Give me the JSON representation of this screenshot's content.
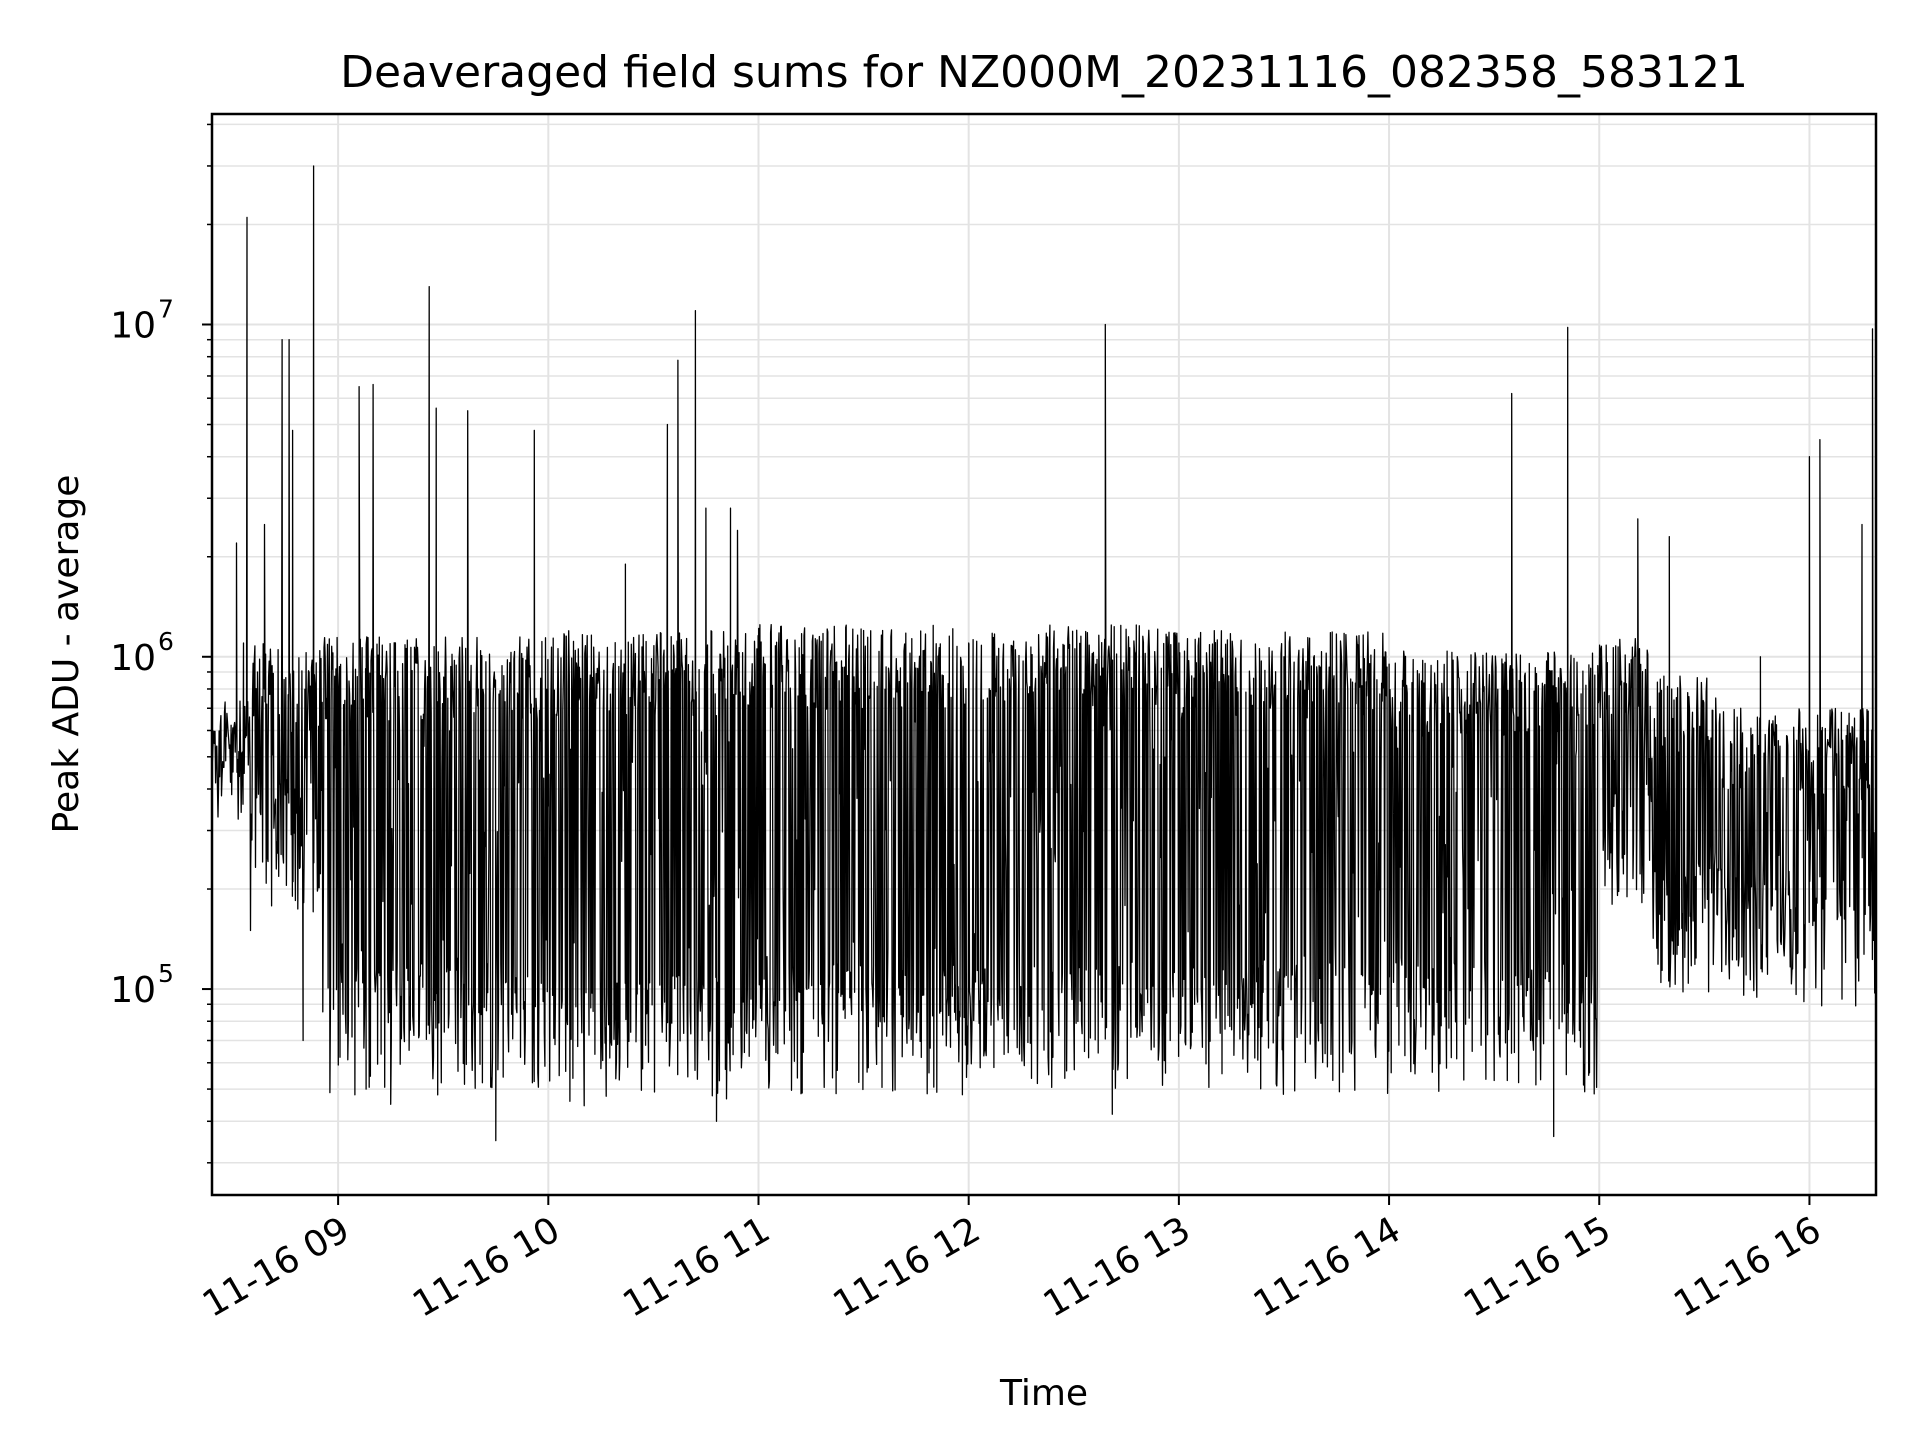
{
  "chart_data": {
    "type": "line",
    "title": "Deaveraged field sums for NZ000M_20231116_082358_583121",
    "xlabel": "Time",
    "ylabel": "Peak ADU - average",
    "x_scale": "time",
    "y_scale": "log",
    "xlim": [
      "2023-11-16 08:24",
      "2023-11-16 16:19"
    ],
    "ylim": [
      24000,
      43000000
    ],
    "x_ticks": [
      "11-16 09",
      "11-16 10",
      "11-16 11",
      "11-16 12",
      "11-16 13",
      "11-16 14",
      "11-16 15",
      "11-16 16"
    ],
    "y_ticks": [
      {
        "base": "10",
        "exp": "5",
        "value": 100000
      },
      {
        "base": "10",
        "exp": "6",
        "value": 1000000
      },
      {
        "base": "10",
        "exp": "7",
        "value": 10000000
      }
    ],
    "grid": true,
    "series": [
      {
        "color": "#000000",
        "points": [
          [
            "2023-11-16 08:24",
            480000
          ],
          [
            "2023-11-16 08:26",
            560000
          ],
          [
            "2023-11-16 08:28",
            620000
          ],
          [
            "2023-11-16 08:30",
            450000
          ],
          [
            "2023-11-16 08:31",
            2200000
          ],
          [
            "2023-11-16 08:33",
            1100000
          ],
          [
            "2023-11-16 08:34",
            21000000
          ],
          [
            "2023-11-16 08:35",
            150000
          ],
          [
            "2023-11-16 08:37",
            900000
          ],
          [
            "2023-11-16 08:39",
            2500000
          ],
          [
            "2023-11-16 08:40",
            500000
          ],
          [
            "2023-11-16 08:44",
            9000000
          ],
          [
            "2023-11-16 08:46",
            9000000
          ],
          [
            "2023-11-16 08:47",
            4800000
          ],
          [
            "2023-11-16 08:50",
            70000
          ],
          [
            "2023-11-16 08:53",
            30000000
          ],
          [
            "2023-11-16 09:06",
            6500000
          ],
          [
            "2023-11-16 09:08",
            50000
          ],
          [
            "2023-11-16 09:10",
            6600000
          ],
          [
            "2023-11-16 09:15",
            45000
          ],
          [
            "2023-11-16 09:26",
            13000000
          ],
          [
            "2023-11-16 09:28",
            5600000
          ],
          [
            "2023-11-16 09:37",
            5500000
          ],
          [
            "2023-11-16 09:45",
            35000
          ],
          [
            "2023-11-16 09:56",
            4800000
          ],
          [
            "2023-11-16 10:22",
            1900000
          ],
          [
            "2023-11-16 10:34",
            5000000
          ],
          [
            "2023-11-16 10:37",
            7800000
          ],
          [
            "2023-11-16 10:42",
            11000000
          ],
          [
            "2023-11-16 10:45",
            2800000
          ],
          [
            "2023-11-16 10:48",
            40000
          ],
          [
            "2023-11-16 10:52",
            2800000
          ],
          [
            "2023-11-16 10:54",
            2400000
          ],
          [
            "2023-11-16 11:00",
            900000
          ],
          [
            "2023-11-16 11:30",
            1200000
          ],
          [
            "2023-11-16 12:00",
            1100000
          ],
          [
            "2023-11-16 12:39",
            10000000
          ],
          [
            "2023-11-16 12:41",
            42000
          ],
          [
            "2023-11-16 13:00",
            1100000
          ],
          [
            "2023-11-16 13:30",
            1000000
          ],
          [
            "2023-11-16 14:00",
            950000
          ],
          [
            "2023-11-16 14:35",
            6200000
          ],
          [
            "2023-11-16 14:47",
            36000
          ],
          [
            "2023-11-16 14:51",
            9800000
          ],
          [
            "2023-11-16 14:57",
            55000
          ],
          [
            "2023-11-16 15:11",
            2600000
          ],
          [
            "2023-11-16 15:20",
            2300000
          ],
          [
            "2023-11-16 15:30",
            450000
          ],
          [
            "2023-11-16 15:46",
            1000000
          ],
          [
            "2023-11-16 16:00",
            4000000
          ],
          [
            "2023-11-16 16:03",
            4500000
          ],
          [
            "2023-11-16 16:10",
            400000
          ],
          [
            "2023-11-16 16:15",
            2500000
          ],
          [
            "2023-11-16 16:18",
            9700000
          ],
          [
            "2023-11-16 16:19",
            120000
          ]
        ]
      }
    ]
  }
}
